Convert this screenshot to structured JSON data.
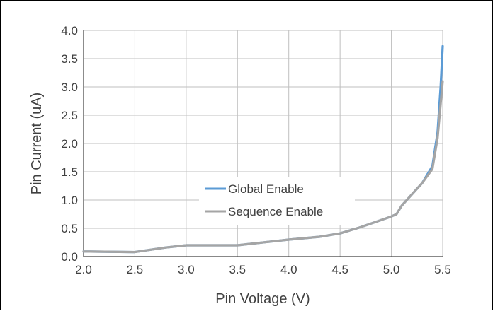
{
  "chart_data": {
    "type": "line",
    "title": "",
    "xlabel": "Pin Voltage (V)",
    "ylabel": "Pin Current (uA)",
    "xlim": [
      2.0,
      5.5
    ],
    "ylim": [
      0.0,
      4.0
    ],
    "xticks": [
      "2.0",
      "2.5",
      "3.0",
      "3.5",
      "4.0",
      "4.5",
      "5.0",
      "5.5"
    ],
    "yticks": [
      "0.0",
      "0.5",
      "1.0",
      "1.5",
      "2.0",
      "2.5",
      "3.0",
      "3.5",
      "4.0"
    ],
    "grid": true,
    "legend_position": "center",
    "series": [
      {
        "name": "Global Enable",
        "color": "#5b9bd5",
        "x": [
          2.0,
          2.5,
          2.8,
          3.0,
          3.2,
          3.5,
          3.8,
          4.0,
          4.3,
          4.5,
          4.7,
          5.0,
          5.05,
          5.1,
          5.2,
          5.3,
          5.4,
          5.45,
          5.48,
          5.5
        ],
        "y": [
          0.09,
          0.08,
          0.16,
          0.2,
          0.2,
          0.2,
          0.26,
          0.3,
          0.35,
          0.41,
          0.52,
          0.71,
          0.75,
          0.9,
          1.1,
          1.3,
          1.6,
          2.2,
          3.0,
          3.72
        ]
      },
      {
        "name": "Sequence Enable",
        "color": "#a5a5a5",
        "x": [
          2.0,
          2.5,
          2.8,
          3.0,
          3.2,
          3.5,
          3.8,
          4.0,
          4.3,
          4.5,
          4.7,
          5.0,
          5.05,
          5.1,
          5.2,
          5.3,
          5.4,
          5.45,
          5.48,
          5.5
        ],
        "y": [
          0.09,
          0.08,
          0.16,
          0.2,
          0.2,
          0.2,
          0.26,
          0.3,
          0.35,
          0.41,
          0.52,
          0.71,
          0.75,
          0.9,
          1.1,
          1.3,
          1.55,
          2.1,
          2.7,
          3.1
        ]
      }
    ]
  }
}
